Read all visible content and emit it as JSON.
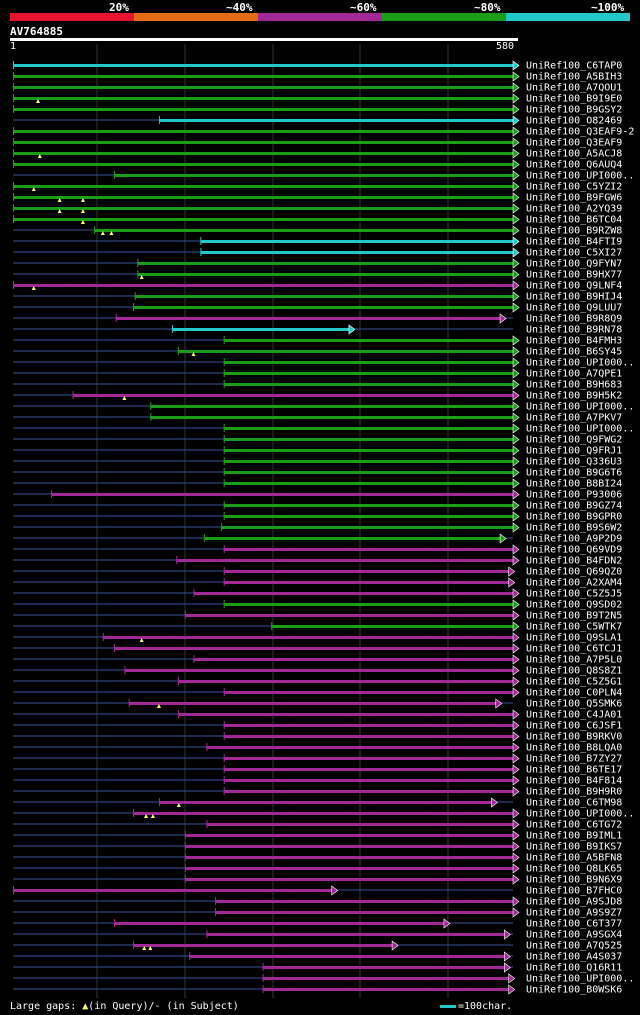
{
  "header": {
    "bands": [
      {
        "label": "20%",
        "color": "#e8132e"
      },
      {
        "label": "~40%",
        "color": "#e36b15"
      },
      {
        "label": "~60%",
        "color": "#a02897"
      },
      {
        "label": "~80%",
        "color": "#1b9d17"
      },
      {
        "label": "~100%",
        "color": "#22c7c7"
      }
    ],
    "query_id": "AV764885",
    "query_start": "1",
    "query_end": "580"
  },
  "rows": [
    {
      "label": "UniRef100_C6TAP0",
      "c": "cyan",
      "s": 1,
      "e": 580
    },
    {
      "label": "UniRef100_A5BIH3",
      "c": "green",
      "s": 1,
      "e": 580
    },
    {
      "label": "UniRef100_A7QOU1",
      "c": "green",
      "s": 1,
      "e": 580
    },
    {
      "label": "UniRef100_B9I9E0",
      "c": "green",
      "s": 1,
      "e": 580,
      "m": [
        30
      ]
    },
    {
      "label": "UniRef100_B9GSY2",
      "c": "green",
      "s": 1,
      "e": 580
    },
    {
      "label": "UniRef100_O82469",
      "c": "cyan",
      "s": 170,
      "e": 580
    },
    {
      "label": "UniRef100_Q3EAF9-2",
      "c": "green",
      "s": 1,
      "e": 580
    },
    {
      "label": "UniRef100_Q3EAF9",
      "c": "green",
      "s": 1,
      "e": 580
    },
    {
      "label": "UniRef100_A5ACJ8",
      "c": "green",
      "s": 1,
      "e": 580,
      "m": [
        32
      ]
    },
    {
      "label": "UniRef100_Q6AUQ4",
      "c": "green",
      "s": 1,
      "e": 580
    },
    {
      "label": "UniRef100_UPI000..",
      "c": "green",
      "s": 118,
      "e": 580
    },
    {
      "label": "UniRef100_C5YZI2",
      "c": "green",
      "s": 1,
      "e": 580,
      "m": [
        25
      ]
    },
    {
      "label": "UniRef100_B9FGW6",
      "c": "green",
      "s": 1,
      "e": 580,
      "m": [
        55,
        82
      ]
    },
    {
      "label": "UniRef100_A2YQ39",
      "c": "green",
      "s": 1,
      "e": 580,
      "m": [
        55,
        82
      ]
    },
    {
      "label": "UniRef100_B6TC04",
      "c": "green",
      "s": 1,
      "e": 580,
      "m": [
        82
      ]
    },
    {
      "label": "UniRef100_B9RZW8",
      "c": "green",
      "s": 95,
      "e": 580,
      "m": [
        105,
        115
      ]
    },
    {
      "label": "UniRef100_B4FTI9",
      "c": "cyan",
      "s": 218,
      "e": 580
    },
    {
      "label": "UniRef100_C5XI27",
      "c": "cyan",
      "s": 218,
      "e": 580
    },
    {
      "label": "UniRef100_Q9FYN7",
      "c": "green",
      "s": 145,
      "e": 580
    },
    {
      "label": "UniRef100_B9HX77",
      "c": "green",
      "s": 145,
      "e": 580,
      "m": [
        150
      ]
    },
    {
      "label": "UniRef100_Q9LNF4",
      "c": "purple",
      "s": 1,
      "e": 580,
      "m": [
        25
      ]
    },
    {
      "label": "UniRef100_B9HIJ4",
      "c": "green",
      "s": 142,
      "e": 580
    },
    {
      "label": "UniRef100_Q9LUU7",
      "c": "green",
      "s": 140,
      "e": 580
    },
    {
      "label": "UniRef100_B9R8Q9",
      "c": "purple",
      "s": 120,
      "e": 565
    },
    {
      "label": "UniRef100_B9RN78",
      "c": "cyan",
      "s": 185,
      "e": 390
    },
    {
      "label": "UniRef100_B4FMH3",
      "c": "green",
      "s": 245,
      "e": 580
    },
    {
      "label": "UniRef100_B6SY45",
      "c": "green",
      "s": 192,
      "e": 580,
      "m": [
        210
      ]
    },
    {
      "label": "UniRef100_UPI000..",
      "c": "green",
      "s": 245,
      "e": 580
    },
    {
      "label": "UniRef100_A7QPE1",
      "c": "green",
      "s": 245,
      "e": 580
    },
    {
      "label": "UniRef100_B9H683",
      "c": "green",
      "s": 245,
      "e": 580
    },
    {
      "label": "UniRef100_B9H5K2",
      "c": "purple",
      "s": 70,
      "e": 580,
      "m": [
        130
      ]
    },
    {
      "label": "UniRef100_UPI000..",
      "c": "green",
      "s": 160,
      "e": 580
    },
    {
      "label": "UniRef100_A7PKV7",
      "c": "green",
      "s": 160,
      "e": 580
    },
    {
      "label": "UniRef100_UPI000..",
      "c": "green",
      "s": 245,
      "e": 580
    },
    {
      "label": "UniRef100_Q9FWG2",
      "c": "green",
      "s": 245,
      "e": 580
    },
    {
      "label": "UniRef100_Q9FRJ1",
      "c": "green",
      "s": 245,
      "e": 580
    },
    {
      "label": "UniRef100_Q336U3",
      "c": "green",
      "s": 245,
      "e": 580
    },
    {
      "label": "UniRef100_B9G6T6",
      "c": "green",
      "s": 245,
      "e": 580
    },
    {
      "label": "UniRef100_B8BI24",
      "c": "green",
      "s": 245,
      "e": 580
    },
    {
      "label": "UniRef100_P93006",
      "c": "purple",
      "s": 45,
      "e": 580
    },
    {
      "label": "UniRef100_B9GZ74",
      "c": "green",
      "s": 245,
      "e": 580
    },
    {
      "label": "UniRef100_B9GPR0",
      "c": "green",
      "s": 245,
      "e": 580
    },
    {
      "label": "UniRef100_B9S6W2",
      "c": "green",
      "s": 242,
      "e": 580
    },
    {
      "label": "UniRef100_A9P2D9",
      "c": "green",
      "s": 222,
      "e": 565
    },
    {
      "label": "UniRef100_Q69VD9",
      "c": "purple",
      "s": 245,
      "e": 580
    },
    {
      "label": "UniRef100_B4FDN2",
      "c": "purple",
      "s": 190,
      "e": 580
    },
    {
      "label": "UniRef100_Q69QZ0",
      "c": "purple",
      "s": 245,
      "e": 575
    },
    {
      "label": "UniRef100_A2XAM4",
      "c": "purple",
      "s": 245,
      "e": 575
    },
    {
      "label": "UniRef100_C5Z5J5",
      "c": "purple",
      "s": 210,
      "e": 580
    },
    {
      "label": "UniRef100_Q9SD02",
      "c": "green",
      "s": 245,
      "e": 580
    },
    {
      "label": "UniRef100_B9T2N5",
      "c": "purple",
      "s": 200,
      "e": 580
    },
    {
      "label": "UniRef100_C5WTK7",
      "c": "green",
      "s": 300,
      "e": 580
    },
    {
      "label": "UniRef100_Q9SLA1",
      "c": "purple",
      "s": 105,
      "e": 580,
      "m": [
        150
      ]
    },
    {
      "label": "UniRef100_C6TCJ1",
      "c": "purple",
      "s": 118,
      "e": 580
    },
    {
      "label": "UniRef100_A7P5L0",
      "c": "purple",
      "s": 210,
      "e": 580
    },
    {
      "label": "UniRef100_Q8S8Z1",
      "c": "purple",
      "s": 130,
      "e": 580
    },
    {
      "label": "UniRef100_C5Z5G1",
      "c": "purple",
      "s": 192,
      "e": 580
    },
    {
      "label": "UniRef100_C0PLN4",
      "c": "purple",
      "s": 245,
      "e": 580
    },
    {
      "label": "UniRef100_Q5SMK6",
      "c": "purple",
      "s": 135,
      "e": 560,
      "m": [
        170
      ]
    },
    {
      "label": "UniRef100_C4JA01",
      "c": "purple",
      "s": 192,
      "e": 580
    },
    {
      "label": "UniRef100_C6JSF1",
      "c": "purple",
      "s": 245,
      "e": 580
    },
    {
      "label": "UniRef100_B9RKV0",
      "c": "purple",
      "s": 245,
      "e": 580
    },
    {
      "label": "UniRef100_B8LQA0",
      "c": "purple",
      "s": 225,
      "e": 580
    },
    {
      "label": "UniRef100_B7ZY27",
      "c": "purple",
      "s": 245,
      "e": 580
    },
    {
      "label": "UniRef100_B6TE17",
      "c": "purple",
      "s": 245,
      "e": 580
    },
    {
      "label": "UniRef100_B4F814",
      "c": "purple",
      "s": 245,
      "e": 580
    },
    {
      "label": "UniRef100_B9H9R0",
      "c": "purple",
      "s": 245,
      "e": 580
    },
    {
      "label": "UniRef100_C6TM98",
      "c": "purple",
      "s": 170,
      "e": 555,
      "m": [
        193
      ]
    },
    {
      "label": "UniRef100_UPI000..",
      "c": "purple",
      "s": 140,
      "e": 580,
      "m": [
        155,
        163
      ]
    },
    {
      "label": "UniRef100_C6TG72",
      "c": "purple",
      "s": 225,
      "e": 580
    },
    {
      "label": "UniRef100_B9IML1",
      "c": "purple",
      "s": 200,
      "e": 580
    },
    {
      "label": "UniRef100_B9IKS7",
      "c": "purple",
      "s": 200,
      "e": 580
    },
    {
      "label": "UniRef100_A5BFN8",
      "c": "purple",
      "s": 200,
      "e": 580
    },
    {
      "label": "UniRef100_Q8LK65",
      "c": "purple",
      "s": 200,
      "e": 580
    },
    {
      "label": "UniRef100_B9N6X9",
      "c": "purple",
      "s": 200,
      "e": 580
    },
    {
      "label": "UniRef100_B7FHC0",
      "c": "purple",
      "s": 1,
      "e": 370
    },
    {
      "label": "UniRef100_A9SJD8",
      "c": "purple",
      "s": 235,
      "e": 580
    },
    {
      "label": "UniRef100_A9S9Z7",
      "c": "purple",
      "s": 235,
      "e": 580
    },
    {
      "label": "UniRef100_C6T377",
      "c": "purple",
      "s": 118,
      "e": 500
    },
    {
      "label": "UniRef100_A9SGX4",
      "c": "purple",
      "s": 225,
      "e": 570
    },
    {
      "label": "UniRef100_A7Q525",
      "c": "purple",
      "s": 140,
      "e": 440,
      "m": [
        153,
        160
      ]
    },
    {
      "label": "UniRef100_A4S037",
      "c": "purple",
      "s": 205,
      "e": 570
    },
    {
      "label": "UniRef100_Q16R11",
      "c": "purple",
      "s": 290,
      "e": 570
    },
    {
      "label": "UniRef100_UPI000..",
      "c": "purple",
      "s": 290,
      "e": 575
    },
    {
      "label": "UniRef100_B0WSK6",
      "c": "purple",
      "s": 290,
      "e": 575
    }
  ],
  "legend": {
    "text_prefix": "Large gaps: ",
    "tri": "▲",
    "text_suffix": "(in Query)/- (in Subject)",
    "scale_label": "=100char."
  },
  "colors": {
    "cyan": "#22c7c7",
    "green": "#1b9d17",
    "purple": "#a02897",
    "ink": "#3a4f9a",
    "gap": "#ffff66"
  }
}
